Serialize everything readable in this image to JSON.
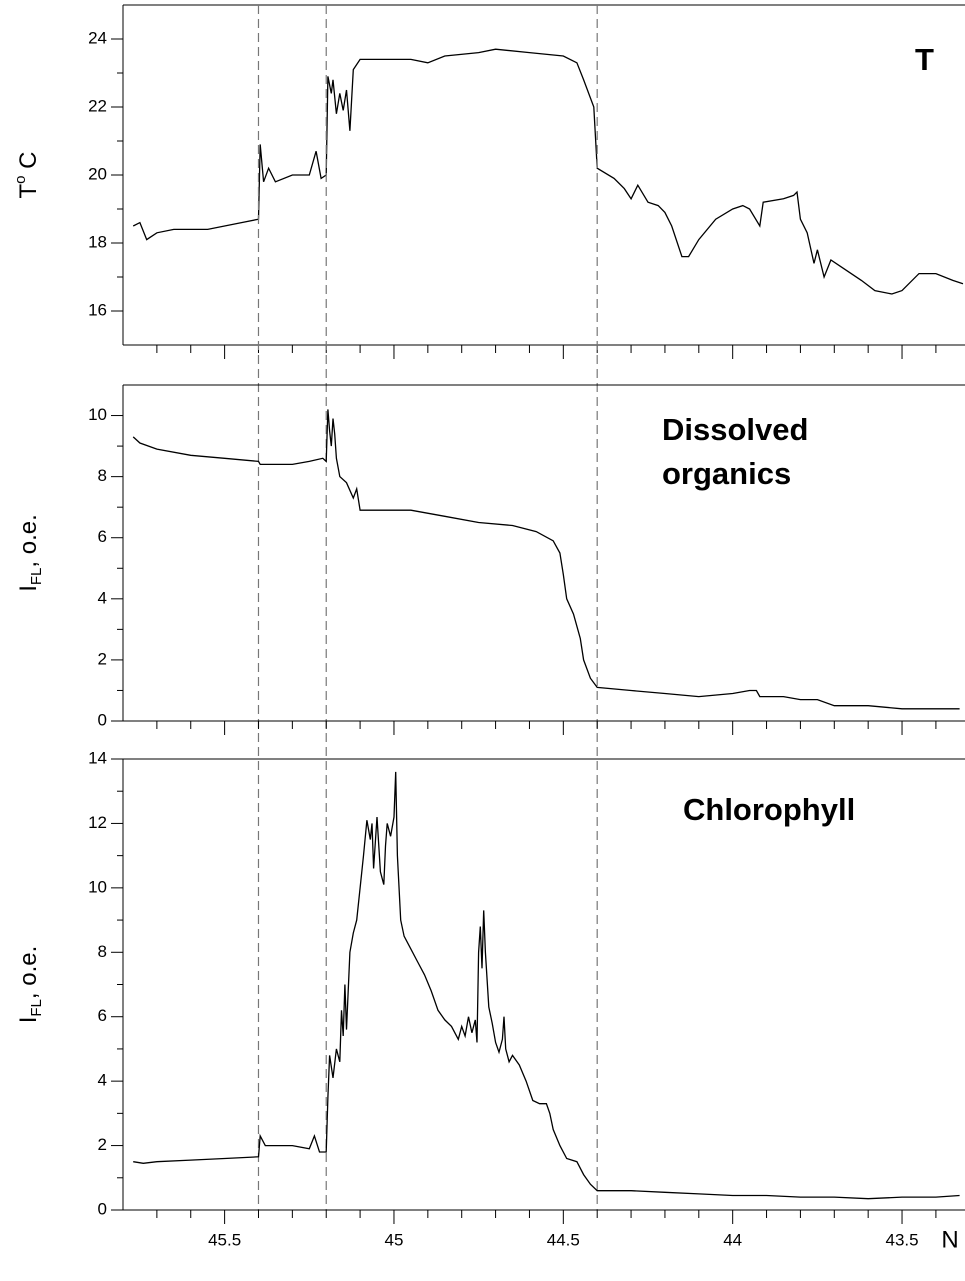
{
  "chart_data": [
    {
      "type": "line",
      "ylabel": {
        "main": "T",
        "sup": "o",
        "rest": " C"
      },
      "annotations": [
        "T"
      ],
      "xlim": [
        45.8,
        43.32
      ],
      "ylim": [
        15,
        25
      ],
      "xticks": [
        45.5,
        45,
        44.5,
        44,
        43.5
      ],
      "xminorticks": [
        45.7,
        45.6,
        45.4,
        45.3,
        45.2,
        45.1,
        44.9,
        44.8,
        44.7,
        44.6,
        44.4,
        44.3,
        44.2,
        44.1,
        43.9,
        43.8,
        43.7,
        43.6,
        43.4
      ],
      "yticks": [
        16,
        18,
        20,
        22,
        24
      ],
      "yminorticks": [
        17,
        19,
        21,
        23
      ],
      "vlines": [
        45.4,
        45.2,
        44.4
      ],
      "color": "#000000",
      "x": [
        45.77,
        45.75,
        45.73,
        45.7,
        45.65,
        45.55,
        45.45,
        45.4,
        45.395,
        45.385,
        45.37,
        45.35,
        45.3,
        45.25,
        45.23,
        45.215,
        45.2,
        45.195,
        45.185,
        45.18,
        45.17,
        45.16,
        45.15,
        45.14,
        45.13,
        45.12,
        45.1,
        45.05,
        44.95,
        44.9,
        44.85,
        44.75,
        44.7,
        44.6,
        44.5,
        44.46,
        44.44,
        44.41,
        44.4,
        44.35,
        44.32,
        44.3,
        44.28,
        44.25,
        44.22,
        44.2,
        44.18,
        44.15,
        44.13,
        44.1,
        44.05,
        44.0,
        43.97,
        43.95,
        43.92,
        43.91,
        43.85,
        43.82,
        43.81,
        43.8,
        43.78,
        43.76,
        43.75,
        43.73,
        43.71,
        43.68,
        43.62,
        43.58,
        43.53,
        43.5,
        43.45,
        43.4,
        43.35,
        43.32
      ],
      "values": [
        18.5,
        18.6,
        18.1,
        18.3,
        18.4,
        18.4,
        18.6,
        18.7,
        20.9,
        19.8,
        20.2,
        19.8,
        20.0,
        20.0,
        20.7,
        19.9,
        20.0,
        22.9,
        22.4,
        22.8,
        21.8,
        22.4,
        21.9,
        22.5,
        21.3,
        23.1,
        23.4,
        23.4,
        23.4,
        23.3,
        23.5,
        23.6,
        23.7,
        23.6,
        23.5,
        23.3,
        22.8,
        22.0,
        20.2,
        19.9,
        19.6,
        19.3,
        19.7,
        19.2,
        19.1,
        18.9,
        18.5,
        17.6,
        17.6,
        18.1,
        18.7,
        19.0,
        19.1,
        19.0,
        18.5,
        19.2,
        19.3,
        19.4,
        19.5,
        18.7,
        18.3,
        17.4,
        17.8,
        17.0,
        17.5,
        17.3,
        16.9,
        16.6,
        16.5,
        16.6,
        17.1,
        17.1,
        16.9,
        16.8
      ]
    },
    {
      "type": "line",
      "ylabel": {
        "main": "I",
        "sub": "FL",
        "rest": ", o.e."
      },
      "annotations": [
        "Dissolved",
        "organics"
      ],
      "xlim": [
        45.8,
        43.32
      ],
      "ylim": [
        0,
        11
      ],
      "xticks": [
        45.5,
        45,
        44.5,
        44,
        43.5
      ],
      "xminorticks": [
        45.7,
        45.6,
        45.4,
        45.3,
        45.2,
        45.1,
        44.9,
        44.8,
        44.7,
        44.6,
        44.4,
        44.3,
        44.2,
        44.1,
        43.9,
        43.8,
        43.7,
        43.6,
        43.4
      ],
      "yticks": [
        0,
        2,
        4,
        6,
        8,
        10
      ],
      "yminorticks": [
        1,
        3,
        5,
        7,
        9
      ],
      "color": "#000000",
      "x": [
        45.77,
        45.75,
        45.7,
        45.6,
        45.5,
        45.4,
        45.395,
        45.35,
        45.3,
        45.25,
        45.21,
        45.2,
        45.195,
        45.19,
        45.185,
        45.18,
        45.175,
        45.17,
        45.16,
        45.14,
        45.12,
        45.11,
        45.1,
        45.05,
        44.95,
        44.85,
        44.75,
        44.65,
        44.58,
        44.53,
        44.51,
        44.5,
        44.49,
        44.47,
        44.45,
        44.44,
        44.42,
        44.4,
        44.3,
        44.2,
        44.1,
        44.0,
        43.95,
        43.93,
        43.92,
        43.85,
        43.8,
        43.75,
        43.7,
        43.6,
        43.5,
        43.4,
        43.33
      ],
      "values": [
        9.3,
        9.1,
        8.9,
        8.7,
        8.6,
        8.5,
        8.4,
        8.4,
        8.4,
        8.5,
        8.6,
        8.5,
        10.2,
        9.5,
        9.0,
        9.9,
        9.4,
        8.6,
        8.0,
        7.8,
        7.3,
        7.6,
        6.9,
        6.9,
        6.9,
        6.7,
        6.5,
        6.4,
        6.2,
        5.9,
        5.5,
        4.8,
        4.0,
        3.5,
        2.7,
        2.0,
        1.4,
        1.1,
        1.0,
        0.9,
        0.8,
        0.9,
        1.0,
        1.0,
        0.8,
        0.8,
        0.7,
        0.7,
        0.5,
        0.5,
        0.4,
        0.4,
        0.4
      ]
    },
    {
      "type": "line",
      "ylabel": {
        "main": "I",
        "sub": "FL",
        "rest": ", o.e."
      },
      "xlabel": "N",
      "annotations": [
        "Chlorophyll"
      ],
      "xlim": [
        45.8,
        43.32
      ],
      "ylim": [
        0,
        14
      ],
      "xticks": [
        45.5,
        45,
        44.5,
        44,
        43.5
      ],
      "xminorticks": [
        45.7,
        45.6,
        45.4,
        45.3,
        45.2,
        45.1,
        44.9,
        44.8,
        44.7,
        44.6,
        44.4,
        44.3,
        44.2,
        44.1,
        43.9,
        43.8,
        43.7,
        43.6,
        43.4
      ],
      "yticks": [
        0,
        2,
        4,
        6,
        8,
        10,
        12,
        14
      ],
      "yminorticks": [
        1,
        3,
        5,
        7,
        9,
        11,
        13
      ],
      "color": "#000000",
      "x": [
        45.77,
        45.74,
        45.7,
        45.6,
        45.5,
        45.4,
        45.395,
        45.38,
        45.3,
        45.25,
        45.235,
        45.22,
        45.2,
        45.195,
        45.19,
        45.18,
        45.17,
        45.16,
        45.155,
        45.15,
        45.145,
        45.14,
        45.13,
        45.12,
        45.11,
        45.1,
        45.09,
        45.08,
        45.07,
        45.065,
        45.06,
        45.05,
        45.04,
        45.03,
        45.025,
        45.02,
        45.01,
        45.0,
        44.995,
        44.99,
        44.98,
        44.97,
        44.95,
        44.93,
        44.91,
        44.89,
        44.87,
        44.85,
        44.83,
        44.81,
        44.8,
        44.79,
        44.78,
        44.77,
        44.76,
        44.755,
        44.75,
        44.745,
        44.74,
        44.735,
        44.73,
        44.72,
        44.71,
        44.7,
        44.69,
        44.68,
        44.675,
        44.67,
        44.66,
        44.65,
        44.63,
        44.61,
        44.59,
        44.57,
        44.55,
        44.54,
        44.53,
        44.51,
        44.49,
        44.46,
        44.44,
        44.42,
        44.4,
        44.3,
        44.2,
        44.1,
        44.0,
        43.9,
        43.8,
        43.7,
        43.6,
        43.5,
        43.4,
        43.33
      ],
      "values": [
        1.5,
        1.45,
        1.5,
        1.55,
        1.6,
        1.65,
        2.3,
        2.0,
        2.0,
        1.9,
        2.3,
        1.8,
        1.8,
        3.5,
        4.8,
        4.1,
        5.0,
        4.6,
        6.2,
        5.4,
        7.0,
        5.6,
        8.0,
        8.6,
        9.0,
        10.0,
        11.0,
        12.1,
        11.5,
        12.0,
        10.6,
        12.2,
        10.5,
        10.1,
        11.3,
        12.0,
        11.6,
        12.2,
        13.6,
        11.0,
        9.0,
        8.5,
        8.1,
        7.7,
        7.3,
        6.8,
        6.2,
        5.9,
        5.7,
        5.3,
        5.7,
        5.4,
        6.0,
        5.5,
        5.9,
        5.2,
        8.0,
        8.8,
        7.5,
        9.3,
        8.0,
        6.3,
        5.8,
        5.2,
        4.9,
        5.3,
        6.0,
        5.0,
        4.6,
        4.8,
        4.5,
        4.0,
        3.4,
        3.3,
        3.3,
        3.0,
        2.5,
        2.0,
        1.6,
        1.5,
        1.1,
        0.8,
        0.6,
        0.6,
        0.55,
        0.5,
        0.45,
        0.45,
        0.4,
        0.4,
        0.35,
        0.4,
        0.4,
        0.45
      ]
    }
  ]
}
